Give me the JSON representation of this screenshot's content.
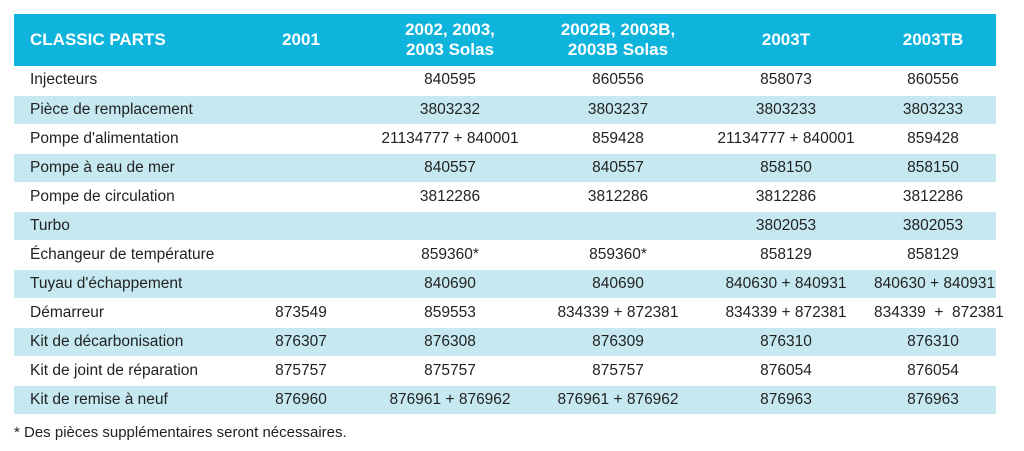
{
  "table": {
    "headers": [
      "CLASSIC PARTS",
      "2001",
      "2002, 2003,\n2003 Solas",
      "2002B, 2003B,\n2003B Solas",
      "2003T",
      "2003TB"
    ],
    "rows": [
      [
        "Injecteurs",
        "",
        "840595",
        "860556",
        "858073",
        "860556"
      ],
      [
        "Pièce de remplacement",
        "",
        "3803232",
        "3803237",
        "3803233",
        "3803233"
      ],
      [
        "Pompe d'alimentation",
        "",
        "21134777 + 840001",
        "859428",
        "21134777 + 840001",
        "859428"
      ],
      [
        "Pompe à eau de mer",
        "",
        "840557",
        "840557",
        "858150",
        "858150"
      ],
      [
        "Pompe de circulation",
        "",
        "3812286",
        "3812286",
        "3812286",
        "3812286"
      ],
      [
        "Turbo",
        "",
        "",
        "",
        "3802053",
        "3802053"
      ],
      [
        "Échangeur de température",
        "",
        "859360*",
        "859360*",
        "858129",
        "858129"
      ],
      [
        "Tuyau d'échappement",
        "",
        "840690",
        "840690",
        "840630 + 840931",
        "840630 + 840931"
      ],
      [
        "Démarreur",
        "873549",
        "859553",
        "834339 + 872381",
        "834339 + 872381",
        "834339  +  872381"
      ],
      [
        "Kit de décarbonisation",
        "876307",
        "876308",
        "876309",
        "876310",
        "876310"
      ],
      [
        "Kit de joint de réparation",
        "875757",
        "875757",
        "875757",
        "876054",
        "876054"
      ],
      [
        "Kit de remise à neuf",
        "876960",
        "876961 + 876962",
        "876961 + 876962",
        "876963",
        "876963"
      ]
    ]
  },
  "footnote": "*  Des pièces supplémentaires seront nécessaires.",
  "colors": {
    "header_bg": "#0fb4dc",
    "stripe": "#c6e9f1",
    "header_text": "#ffffff"
  }
}
